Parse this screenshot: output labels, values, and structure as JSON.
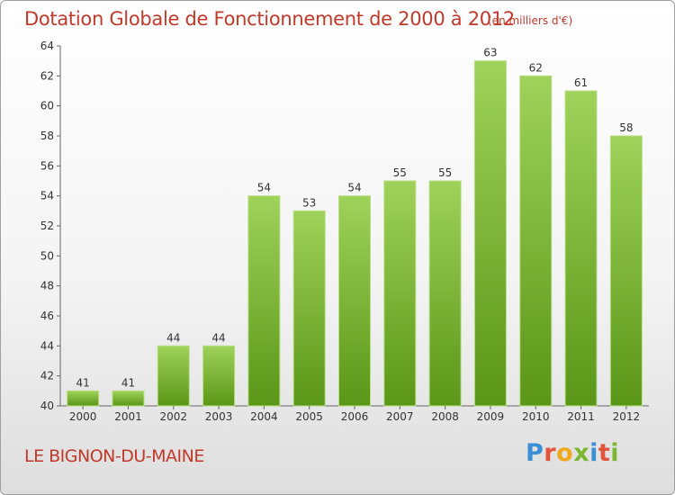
{
  "header": {
    "title": "Dotation Globale de Fonctionnement de 2000 à 2012",
    "unit": "(en milliers d'€)"
  },
  "footer": {
    "place": "LE BIGNON-DU-MAINE",
    "brand": "Proxiti",
    "brand_colors": [
      "#3a8fd6",
      "#e2553a",
      "#f0a81c",
      "#7cb82f",
      "#3a8fd6",
      "#e2553a",
      "#7cb82f"
    ]
  },
  "colors": {
    "bar_top": "#9fd25a",
    "bar_bottom": "#5a9617",
    "label": "#333333",
    "axis": "#666666",
    "gridline": "#d0d0d0",
    "title": "#c0392b"
  },
  "chart_data": {
    "type": "bar",
    "title": "Dotation Globale de Fonctionnement de 2000 à 2012",
    "subtitle": "(en milliers d'€)",
    "xlabel": "",
    "ylabel": "",
    "categories": [
      "2000",
      "2001",
      "2002",
      "2003",
      "2004",
      "2005",
      "2006",
      "2007",
      "2008",
      "2009",
      "2010",
      "2011",
      "2012"
    ],
    "values": [
      41,
      41,
      44,
      44,
      54,
      53,
      54,
      55,
      55,
      63,
      62,
      61,
      58
    ],
    "ylim": [
      40,
      64
    ],
    "yticks": [
      40,
      42,
      44,
      46,
      48,
      50,
      52,
      54,
      56,
      58,
      60,
      62,
      64
    ],
    "grid": false,
    "legend": "none"
  }
}
